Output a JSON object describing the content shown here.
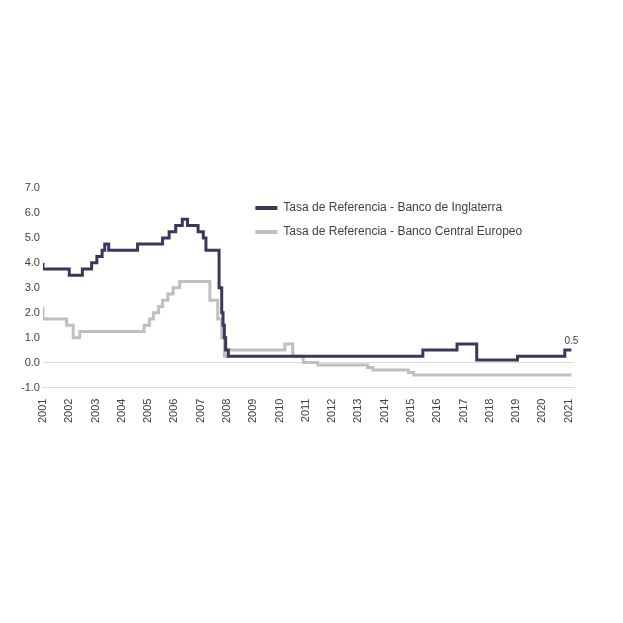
{
  "chart_data": {
    "type": "line",
    "legend": "upper right",
    "grid": false,
    "xlim": [
      2001,
      2021.2
    ],
    "xticks": [
      2001,
      2002,
      2003,
      2004,
      2005,
      2006,
      2007,
      2008,
      2009,
      2010,
      2011,
      2012,
      2013,
      2014,
      2015,
      2016,
      2017,
      2018,
      2019,
      2020,
      2021
    ],
    "ylim": [
      -1,
      7
    ],
    "yticks": [
      {
        "value": -1,
        "label": "-1.0"
      },
      {
        "value": 0,
        "label": "0.0"
      },
      {
        "value": 1,
        "label": "1.0"
      },
      {
        "value": 2,
        "label": "2.0"
      },
      {
        "value": 3,
        "label": "3.0"
      },
      {
        "value": 4,
        "label": "4.0"
      },
      {
        "value": 5,
        "label": "5.0"
      },
      {
        "value": 6,
        "label": "6.0"
      },
      {
        "value": 7,
        "label": "7.0"
      }
    ],
    "series": [
      {
        "name": "Tasa de Referencia - Banco de Inglaterra",
        "color": "#3a3858",
        "x": [
          2001,
          2002.0,
          2002.5,
          2002.85,
          2003.05,
          2003.25,
          2003.35,
          2003.5,
          2004.6,
          2005.55,
          2005.8,
          2006.05,
          2006.3,
          2006.5,
          2006.9,
          2007.1,
          2007.2,
          2007.7,
          2007.8,
          2007.85,
          2007.9,
          2007.95,
          2008.0,
          2008.05,
          2015.45,
          2016.75,
          2017.5,
          2019.05,
          2020.85,
          2020.95,
          2021.05,
          2021.1
        ],
        "values": [
          4.0,
          3.75,
          3.5,
          3.75,
          4.0,
          4.25,
          4.5,
          4.75,
          4.5,
          4.75,
          5.0,
          5.25,
          5.5,
          5.75,
          5.5,
          5.25,
          5.0,
          4.5,
          3.0,
          2.0,
          1.5,
          1.0,
          0.5,
          0.5,
          0.25,
          0.5,
          0.75,
          0.1,
          0.25,
          0.5,
          0.5,
          0.5
        ]
      },
      {
        "name": "Tasa de Referencia - Banco Central Europeo",
        "color": "#bfbfbf",
        "x": [
          2001,
          2001.9,
          2002.15,
          2002.4,
          2004.85,
          2005.05,
          2005.2,
          2005.4,
          2005.55,
          2005.75,
          2005.95,
          2006.2,
          2007.35,
          2007.65,
          2007.8,
          2007.9,
          2008.05,
          2010.2,
          2010.5,
          2010.9,
          2011.45,
          2013.35,
          2013.55,
          2014.9,
          2015.1,
          2018.65,
          2021.1
        ],
        "values": [
          2.25,
          1.75,
          1.5,
          1.0,
          1.25,
          1.5,
          1.75,
          2.0,
          2.25,
          2.5,
          2.75,
          3.0,
          3.25,
          2.5,
          1.75,
          1.0,
          0.25,
          0.5,
          0.75,
          0.25,
          0.0,
          -0.1,
          -0.2,
          -0.3,
          -0.4,
          -0.5,
          -0.5
        ]
      }
    ],
    "annotations": [
      {
        "text": "0.5",
        "x": 2021.1,
        "y": 0.5
      }
    ]
  }
}
